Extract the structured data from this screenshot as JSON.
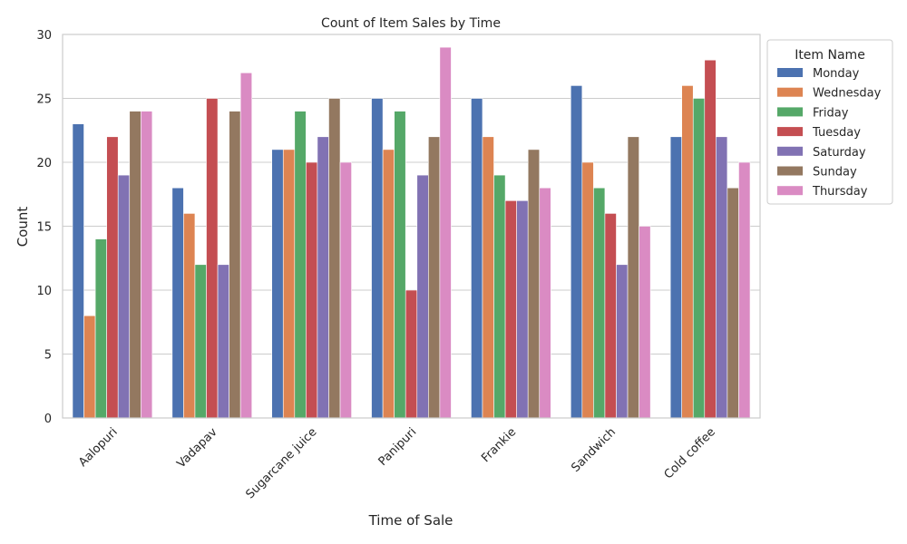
{
  "chart_data": {
    "type": "bar",
    "title": "Count of Item Sales by Time",
    "xlabel": "Time of Sale",
    "ylabel": "Count",
    "ylim": [
      0,
      30
    ],
    "yticks": [
      "0",
      "5",
      "10",
      "15",
      "20",
      "25",
      "30"
    ],
    "grid": true,
    "legend_title": "Item Name",
    "legend_position": "outside-top-right",
    "categories": [
      "Aalopuri",
      "Vadapav",
      "Sugarcane juice",
      "Panipuri",
      "Frankie",
      "Sandwich",
      "Cold coffee"
    ],
    "series": [
      {
        "name": "Monday",
        "color": "#4c72b0",
        "values": [
          23,
          18,
          21,
          25,
          25,
          26,
          22
        ]
      },
      {
        "name": "Wednesday",
        "color": "#dd8452",
        "values": [
          8,
          16,
          21,
          21,
          22,
          20,
          26
        ]
      },
      {
        "name": "Friday",
        "color": "#55a868",
        "values": [
          14,
          12,
          24,
          24,
          19,
          18,
          25
        ]
      },
      {
        "name": "Tuesday",
        "color": "#c44e52",
        "values": [
          22,
          25,
          20,
          10,
          17,
          16,
          28
        ]
      },
      {
        "name": "Saturday",
        "color": "#8172b3",
        "values": [
          19,
          12,
          22,
          19,
          17,
          12,
          22
        ]
      },
      {
        "name": "Sunday",
        "color": "#937860",
        "values": [
          24,
          24,
          25,
          22,
          21,
          22,
          18
        ]
      },
      {
        "name": "Thursday",
        "color": "#da8bc3",
        "values": [
          24,
          27,
          20,
          29,
          18,
          15,
          20
        ]
      }
    ]
  }
}
